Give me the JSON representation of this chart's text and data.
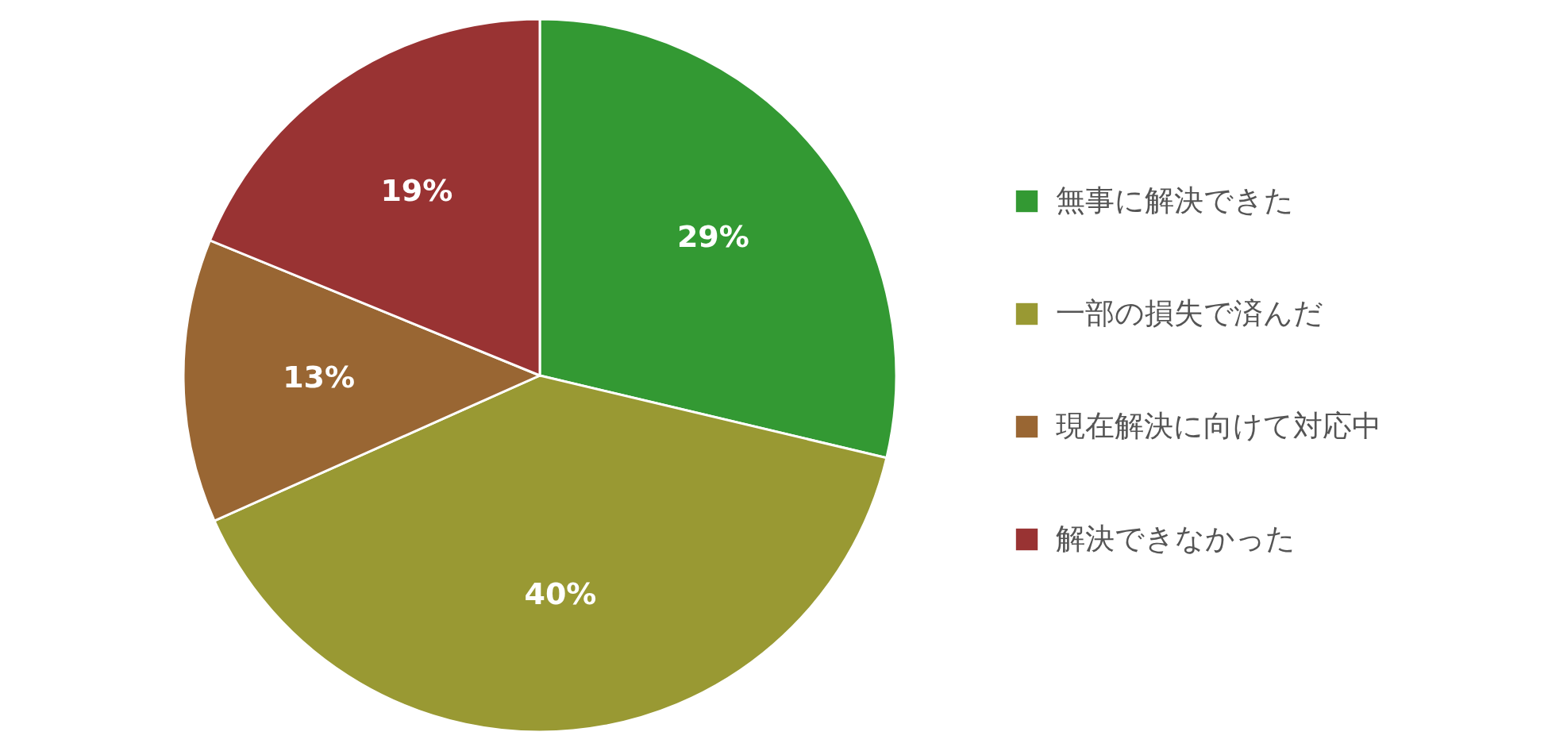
{
  "chart_data": {
    "type": "pie",
    "categories": [
      "無事に解決できた",
      "一部の損失で済んだ",
      "現在解決に向けて対応中",
      "解決できなかった"
    ],
    "values": [
      29,
      40,
      13,
      19
    ],
    "value_labels": [
      "29%",
      "40%",
      "13%",
      "19%"
    ],
    "colors": [
      "#339933",
      "#999933",
      "#996633",
      "#993333"
    ],
    "legend": "right"
  }
}
